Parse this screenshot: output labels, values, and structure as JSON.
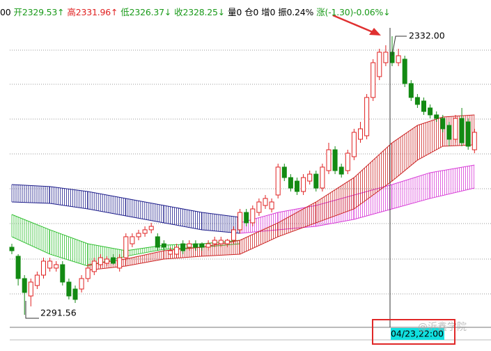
{
  "chart_data": {
    "type": "candlestick",
    "header": [
      {
        "text": "00",
        "color": "#000000"
      },
      {
        "text": "开2329.53↑",
        "color": "#1a9a1a"
      },
      {
        "text": "高2331.96↑",
        "color": "#e02020"
      },
      {
        "text": "低2326.37↓",
        "color": "#1a9a1a"
      },
      {
        "text": "收2328.25↓",
        "color": "#1a9a1a"
      },
      {
        "text": "量0",
        "color": "#000000"
      },
      {
        "text": "仓0",
        "color": "#000000"
      },
      {
        "text": "增0",
        "color": "#000000"
      },
      {
        "text": "振0.24%",
        "color": "#000000"
      },
      {
        "text": "涨(-1.30)-0.06%↓",
        "color": "#1a9a1a"
      }
    ],
    "ylim": [
      2289.74,
      2337.26
    ],
    "up_color": "#e02020",
    "down_color": "#138a13",
    "candles": [
      [
        2301.37,
        2301.87,
        2300.36,
        2300.86
      ],
      [
        2300.06,
        2300.36,
        2295.81,
        2296.82
      ],
      [
        2296.82,
        2297.32,
        2291.56,
        2294.8
      ],
      [
        2294.29,
        2296.82,
        2292.78,
        2296.31
      ],
      [
        2295.81,
        2297.83,
        2295.3,
        2297.32
      ],
      [
        2297.32,
        2299.85,
        2296.82,
        2299.35
      ],
      [
        2298.34,
        2299.85,
        2297.83,
        2299.35
      ],
      [
        2298.34,
        2299.35,
        2297.83,
        2298.84
      ],
      [
        2298.84,
        2299.35,
        2295.81,
        2296.31
      ],
      [
        2296.31,
        2296.82,
        2293.79,
        2294.29
      ],
      [
        2295.3,
        2295.81,
        2293.28,
        2293.79
      ],
      [
        2295.3,
        2297.32,
        2294.8,
        2296.82
      ],
      [
        2296.82,
        2298.84,
        2296.31,
        2298.34
      ],
      [
        2297.83,
        2299.85,
        2297.32,
        2299.35
      ],
      [
        2298.84,
        2300.36,
        2298.34,
        2299.85
      ],
      [
        2299.04,
        2300.06,
        2298.64,
        2299.65
      ],
      [
        2299.85,
        2300.36,
        2298.84,
        2299.04
      ],
      [
        2298.34,
        2300.36,
        2297.83,
        2299.85
      ],
      [
        2299.85,
        2303.39,
        2299.35,
        2302.89
      ],
      [
        2301.87,
        2303.39,
        2301.37,
        2302.89
      ],
      [
        2302.89,
        2303.9,
        2302.38,
        2303.39
      ],
      [
        2303.39,
        2304.4,
        2302.89,
        2303.9
      ],
      [
        2303.9,
        2304.91,
        2303.39,
        2304.4
      ],
      [
        2302.89,
        2303.39,
        2300.86,
        2301.37
      ],
      [
        2301.87,
        2302.38,
        2300.86,
        2301.37
      ],
      [
        2300.36,
        2301.37,
        2299.85,
        2300.86
      ],
      [
        2300.36,
        2301.87,
        2299.85,
        2301.37
      ],
      [
        2301.87,
        2302.38,
        2300.36,
        2300.86
      ],
      [
        2301.37,
        2302.38,
        2300.86,
        2301.87
      ],
      [
        2301.87,
        2302.38,
        2300.86,
        2301.37
      ],
      [
        2301.87,
        2302.08,
        2300.86,
        2301.37
      ],
      [
        2301.37,
        2302.38,
        2300.86,
        2301.87
      ],
      [
        2301.87,
        2302.89,
        2301.37,
        2302.38
      ],
      [
        2301.87,
        2302.89,
        2301.37,
        2302.38
      ],
      [
        2301.87,
        2302.58,
        2301.37,
        2302.38
      ],
      [
        2302.38,
        2304.4,
        2301.87,
        2303.9
      ],
      [
        2303.9,
        2306.93,
        2303.39,
        2306.42
      ],
      [
        2306.42,
        2306.93,
        2304.4,
        2304.91
      ],
      [
        2304.91,
        2307.43,
        2304.4,
        2306.93
      ],
      [
        2306.42,
        2308.45,
        2305.92,
        2307.94
      ],
      [
        2307.43,
        2308.95,
        2306.93,
        2308.45
      ],
      [
        2306.93,
        2308.45,
        2306.42,
        2307.94
      ],
      [
        2308.95,
        2313.5,
        2308.45,
        2313.0
      ],
      [
        2313.0,
        2313.5,
        2310.97,
        2311.48
      ],
      [
        2311.48,
        2311.98,
        2309.46,
        2309.96
      ],
      [
        2310.97,
        2311.48,
        2308.95,
        2309.46
      ],
      [
        2309.46,
        2311.98,
        2308.95,
        2311.48
      ],
      [
        2310.97,
        2312.49,
        2310.47,
        2311.98
      ],
      [
        2311.98,
        2312.49,
        2309.46,
        2309.96
      ],
      [
        2309.96,
        2313.5,
        2309.46,
        2313.0
      ],
      [
        2312.49,
        2316.53,
        2311.98,
        2315.52
      ],
      [
        2315.52,
        2316.03,
        2311.98,
        2312.49
      ],
      [
        2313.0,
        2313.5,
        2311.48,
        2311.98
      ],
      [
        2312.49,
        2315.52,
        2311.98,
        2315.02
      ],
      [
        2314.51,
        2318.56,
        2314.01,
        2318.05
      ],
      [
        2317.04,
        2319.57,
        2316.53,
        2318.56
      ],
      [
        2317.55,
        2323.61,
        2317.04,
        2323.11
      ],
      [
        2323.11,
        2328.67,
        2322.6,
        2328.16
      ],
      [
        2326.14,
        2330.18,
        2325.63,
        2329.68
      ],
      [
        2328.16,
        2330.69,
        2327.66,
        2329.68
      ],
      [
        2329.68,
        2332.0,
        2327.66,
        2328.16
      ],
      [
        2328.16,
        2330.18,
        2327.66,
        2329.17
      ],
      [
        2328.67,
        2329.17,
        2324.62,
        2325.13
      ],
      [
        2325.13,
        2325.63,
        2322.6,
        2323.11
      ],
      [
        2323.11,
        2323.61,
        2321.59,
        2322.1
      ],
      [
        2322.6,
        2323.11,
        2320.58,
        2321.08
      ],
      [
        2321.59,
        2322.1,
        2320.07,
        2320.58
      ],
      [
        2320.58,
        2321.08,
        2319.57,
        2320.07
      ],
      [
        2320.07,
        2320.58,
        2318.05,
        2318.56
      ],
      [
        2319.06,
        2319.57,
        2316.03,
        2317.04
      ],
      [
        2317.04,
        2320.58,
        2316.53,
        2320.07
      ],
      [
        2320.07,
        2321.59,
        2316.03,
        2316.53
      ],
      [
        2319.57,
        2320.07,
        2315.52,
        2316.03
      ],
      [
        2315.52,
        2318.56,
        2315.02,
        2318.05
      ]
    ],
    "bands": [
      {
        "color": "#1c1c8a",
        "x": [
          0,
          6,
          12,
          18,
          24,
          30,
          36
        ],
        "upper": [
          2310.47,
          2310.17,
          2309.46,
          2308.45,
          2307.43,
          2306.42,
          2305.72
        ],
        "lower": [
          2307.94,
          2307.74,
          2306.93,
          2305.92,
          2304.91,
          2303.9,
          2303.39
        ]
      },
      {
        "color": "#2fbf2f",
        "x": [
          0,
          6,
          12,
          18,
          24,
          30,
          36
        ],
        "upper": [
          2306.12,
          2303.9,
          2301.87,
          2300.86,
          2301.67,
          2301.87,
          2302.38
        ],
        "lower": [
          2302.89,
          2300.36,
          2298.64,
          2300.06,
          2301.07,
          2301.37,
          2301.87
        ]
      },
      {
        "color": "#d83cd8",
        "x": [
          36,
          42,
          48,
          54,
          60,
          66,
          73
        ],
        "upper": [
          2304.91,
          2306.42,
          2307.43,
          2308.95,
          2310.47,
          2312.19,
          2313.3
        ],
        "lower": [
          2303.39,
          2303.9,
          2304.4,
          2305.41,
          2306.93,
          2308.45,
          2309.96
        ]
      },
      {
        "color": "#cc2222",
        "x": [
          12,
          18,
          24,
          30,
          36,
          42,
          48,
          54,
          60,
          64,
          68,
          73
        ],
        "upper": [
          2298.84,
          2299.65,
          2300.86,
          2301.37,
          2302.38,
          2304.91,
          2307.94,
          2311.48,
          2316.53,
          2319.06,
          2320.27,
          2320.58
        ],
        "lower": [
          2298.03,
          2298.64,
          2299.65,
          2300.06,
          2300.36,
          2302.89,
          2304.91,
          2306.93,
          2310.97,
          2314.01,
          2316.03,
          2316.23
        ]
      }
    ],
    "high_marker": {
      "label": "2332.00",
      "value": 2332.0
    },
    "low_marker": {
      "label": "2291.56",
      "value": 2291.56
    },
    "cursor_label": "04/23,22:00",
    "watermark": "@沂鑫学院"
  }
}
